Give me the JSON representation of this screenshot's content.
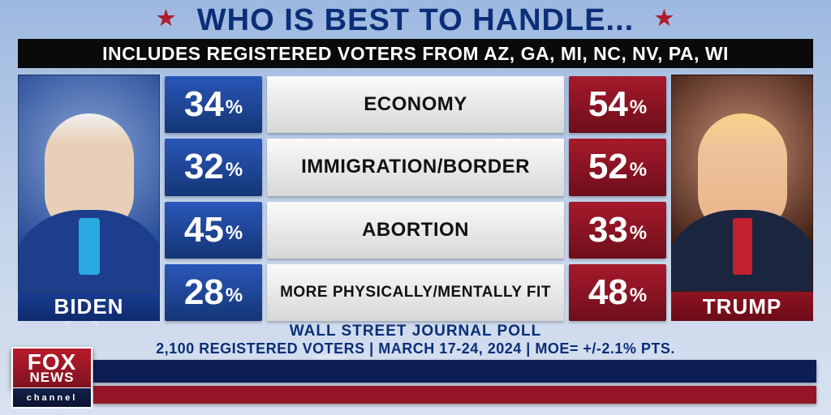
{
  "header": {
    "title": "WHO IS BEST TO HANDLE...",
    "title_color": "#0b2e78",
    "star_color": "#b01c2e",
    "subtitle": "INCLUDES REGISTERED VOTERS FROM AZ, GA, MI, NC, NV, PA, WI",
    "subtitle_bg": "#0a0a0a",
    "subtitle_fg": "#ffffff"
  },
  "candidates": {
    "left": {
      "name": "BIDEN",
      "label_bg": "#143a8e",
      "photo_bg": "#2a4e99",
      "tie": "#2aa8e0",
      "suit": "#1d3e8c"
    },
    "right": {
      "name": "TRUMP",
      "label_bg": "#8f1220",
      "photo_bg": "#3a1a10",
      "tie": "#c32030",
      "suit": "#1a2540"
    }
  },
  "colors": {
    "blue_cell": "#1d418f",
    "red_cell": "#8a1523",
    "topic_cell_bg": "#e6e6e6",
    "topic_cell_fg": "#111111"
  },
  "rows": [
    {
      "left_pct": 34,
      "topic": "ECONOMY",
      "right_pct": 54,
      "small": false
    },
    {
      "left_pct": 32,
      "topic": "IMMIGRATION/BORDER",
      "right_pct": 52,
      "small": false
    },
    {
      "left_pct": 45,
      "topic": "ABORTION",
      "right_pct": 33,
      "small": false
    },
    {
      "left_pct": 28,
      "topic": "MORE PHYSICALLY/MENTALLY FIT",
      "right_pct": 48,
      "small": true
    }
  ],
  "caption": {
    "line1": "WALL STREET JOURNAL POLL",
    "line2": "2,100 REGISTERED VOTERS | MARCH 17-24, 2024 | MOE= +/-2.1% PTS.",
    "color": "#0b2e78"
  },
  "lower_third": {
    "navy": "#0d1e55",
    "red": "#941626"
  },
  "bug": {
    "top1": "FOX",
    "top2": "NEWS",
    "bottom": "channel",
    "top_bg": "#9c1826",
    "bottom_bg": "#11204a"
  }
}
